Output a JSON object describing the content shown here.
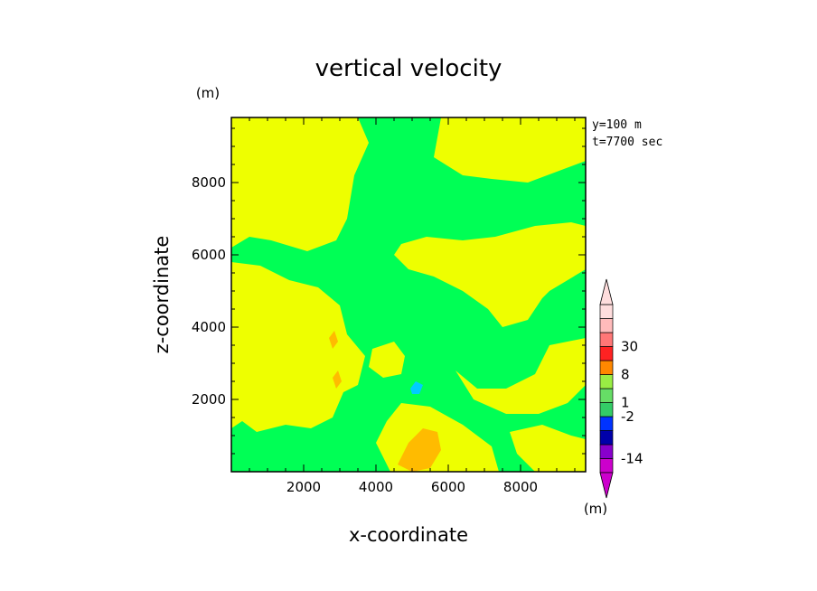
{
  "chart_data": {
    "type": "heatmap",
    "title": "vertical velocity",
    "xlabel": "x-coordinate",
    "ylabel": "z-coordinate",
    "units_label_top": "(m)",
    "units_label_bottom": "(m)",
    "info_lines": [
      "y=100 m",
      "t=7700 sec"
    ],
    "xlim": [
      0,
      9800
    ],
    "ylim": [
      0,
      9800
    ],
    "xticks": [
      2000,
      4000,
      6000,
      8000
    ],
    "yticks": [
      2000,
      4000,
      6000,
      8000
    ],
    "background_level_color": "#00ff55",
    "colorbar": {
      "colors": [
        "#cc00cc",
        "#8800cc",
        "#0000aa",
        "#0033ff",
        "#33cc66",
        "#66dd66",
        "#99ee44",
        "#ff8800",
        "#ff2222",
        "#ff7777",
        "#ffbbbb",
        "#ffdddd"
      ],
      "tick_labels": [
        {
          "text": "30",
          "level": 9
        },
        {
          "text": "8",
          "level": 7
        },
        {
          "text": "1",
          "level": 5
        },
        {
          "text": "-2",
          "level": 4
        },
        {
          "text": "-14",
          "level": 1
        }
      ]
    },
    "regions": [
      {
        "name": "yellow-1",
        "color": "#eeff00",
        "points": [
          [
            0,
            9800
          ],
          [
            3500,
            9800
          ],
          [
            3800,
            9100
          ],
          [
            3400,
            8200
          ],
          [
            3200,
            7000
          ],
          [
            2900,
            6400
          ],
          [
            2100,
            6100
          ],
          [
            1100,
            6400
          ],
          [
            500,
            6500
          ],
          [
            0,
            6200
          ]
        ]
      },
      {
        "name": "yellow-2",
        "color": "#eeff00",
        "points": [
          [
            5800,
            9800
          ],
          [
            9800,
            9800
          ],
          [
            9800,
            8600
          ],
          [
            8200,
            8000
          ],
          [
            7200,
            8100
          ],
          [
            6400,
            8200
          ],
          [
            5600,
            8700
          ]
        ]
      },
      {
        "name": "yellow-3",
        "color": "#eeff00",
        "points": [
          [
            4700,
            6300
          ],
          [
            5400,
            6500
          ],
          [
            6400,
            6400
          ],
          [
            7300,
            6500
          ],
          [
            8400,
            6800
          ],
          [
            9400,
            6900
          ],
          [
            9800,
            6800
          ],
          [
            9800,
            5600
          ],
          [
            8800,
            5000
          ],
          [
            8600,
            4800
          ],
          [
            8200,
            4200
          ],
          [
            7500,
            4000
          ],
          [
            7100,
            4500
          ],
          [
            6400,
            5000
          ],
          [
            5600,
            5400
          ],
          [
            4900,
            5600
          ],
          [
            4500,
            6000
          ]
        ]
      },
      {
        "name": "yellow-4",
        "color": "#eeff00",
        "points": [
          [
            0,
            5800
          ],
          [
            800,
            5700
          ],
          [
            1600,
            5300
          ],
          [
            2400,
            5100
          ],
          [
            3000,
            4600
          ],
          [
            3200,
            3800
          ],
          [
            3700,
            3200
          ],
          [
            3500,
            2400
          ],
          [
            3100,
            2200
          ],
          [
            2800,
            1500
          ],
          [
            2200,
            1200
          ],
          [
            1500,
            1300
          ],
          [
            700,
            1100
          ],
          [
            300,
            1400
          ],
          [
            0,
            1200
          ]
        ]
      },
      {
        "name": "yellow-5",
        "color": "#eeff00",
        "points": [
          [
            6200,
            2800
          ],
          [
            6800,
            2300
          ],
          [
            7600,
            2300
          ],
          [
            8400,
            2700
          ],
          [
            8800,
            3500
          ],
          [
            9800,
            3700
          ],
          [
            9800,
            2400
          ],
          [
            9300,
            1900
          ],
          [
            8500,
            1600
          ],
          [
            7600,
            1600
          ],
          [
            6700,
            2000
          ]
        ]
      },
      {
        "name": "yellow-6",
        "color": "#eeff00",
        "points": [
          [
            4400,
            0
          ],
          [
            7400,
            0
          ],
          [
            7200,
            700
          ],
          [
            6400,
            1300
          ],
          [
            5500,
            1800
          ],
          [
            4700,
            1900
          ],
          [
            4300,
            1400
          ],
          [
            4000,
            800
          ]
        ]
      },
      {
        "name": "yellow-7",
        "color": "#eeff00",
        "points": [
          [
            3900,
            3400
          ],
          [
            4500,
            3600
          ],
          [
            4800,
            3200
          ],
          [
            4700,
            2700
          ],
          [
            4200,
            2600
          ],
          [
            3800,
            2900
          ]
        ]
      },
      {
        "name": "yellow-8",
        "color": "#eeff00",
        "points": [
          [
            7700,
            1100
          ],
          [
            8600,
            1300
          ],
          [
            9400,
            1000
          ],
          [
            9800,
            900
          ],
          [
            9800,
            0
          ],
          [
            8400,
            0
          ],
          [
            7900,
            500
          ]
        ]
      },
      {
        "name": "orange-1",
        "color": "#ffbb00",
        "points": [
          [
            4600,
            200
          ],
          [
            4900,
            800
          ],
          [
            5300,
            1200
          ],
          [
            5700,
            1100
          ],
          [
            5800,
            600
          ],
          [
            5500,
            100
          ],
          [
            5000,
            0
          ]
        ]
      },
      {
        "name": "orange-2",
        "color": "#ffbb00",
        "points": [
          [
            2700,
            3700
          ],
          [
            2850,
            3900
          ],
          [
            2950,
            3600
          ],
          [
            2800,
            3400
          ]
        ]
      },
      {
        "name": "orange-3",
        "color": "#ffbb00",
        "points": [
          [
            2800,
            2600
          ],
          [
            2950,
            2800
          ],
          [
            3050,
            2500
          ],
          [
            2900,
            2300
          ]
        ]
      },
      {
        "name": "cyan-1",
        "color": "#00ccff",
        "points": [
          [
            4950,
            2300
          ],
          [
            5100,
            2500
          ],
          [
            5300,
            2400
          ],
          [
            5200,
            2150
          ],
          [
            5000,
            2150
          ]
        ]
      }
    ]
  }
}
